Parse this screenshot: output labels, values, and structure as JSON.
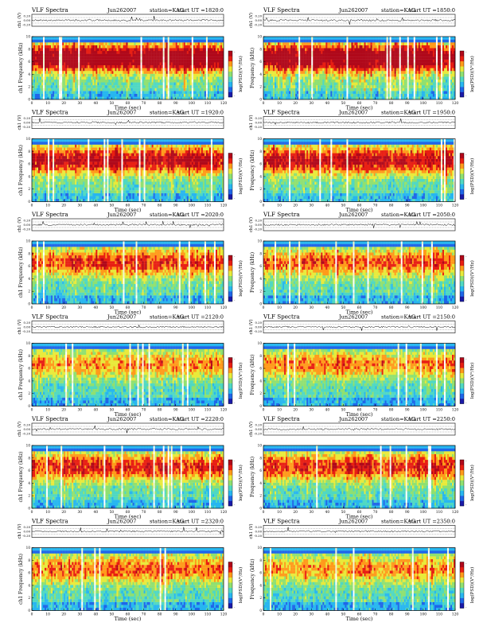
{
  "chart_data": [
    {
      "type": "heatmap",
      "product": "VLF Spectra",
      "date": "Jun262007",
      "station": "station=KAG",
      "start_ut": "start UT =1820:0",
      "waveform_ylabel": "ch1 (V)",
      "waveform_ticks": [
        "0.20",
        "0.00",
        "-0.20"
      ],
      "ylabel": "ch1 Frequency (kHz)",
      "xlabel": "Time (sec)",
      "xlim": [
        0,
        120
      ],
      "ylim": [
        0,
        10
      ],
      "x_ticks": [
        "0",
        "10",
        "20",
        "30",
        "40",
        "50",
        "60",
        "70",
        "80",
        "90",
        "100",
        "110",
        "120"
      ],
      "y_ticks": [
        "0",
        "2",
        "4",
        "6",
        "8",
        "10"
      ],
      "colorbar_label": "log(PSD)(V²/Hz)",
      "colorbar_ticks": [
        "-",
        "-"
      ],
      "intensity": 0.85,
      "seed": 11
    },
    {
      "type": "heatmap",
      "product": "VLF Spectra",
      "date": "Jun262007",
      "station": "station=KAG",
      "start_ut": "start UT =1850:0",
      "waveform_ylabel": "ch1 (V)",
      "waveform_ticks": [
        "0.20",
        "0.00",
        "-0.20"
      ],
      "ylabel": "Frequency (kHz)",
      "xlabel": "Time (sec)",
      "xlim": [
        0,
        120
      ],
      "ylim": [
        0,
        10
      ],
      "x_ticks": [
        "0",
        "10",
        "20",
        "30",
        "40",
        "50",
        "60",
        "70",
        "80",
        "90",
        "100",
        "110",
        "120"
      ],
      "y_ticks": [
        "0",
        "2",
        "4",
        "6",
        "8",
        "10"
      ],
      "colorbar_label": "log(PSD)(V²/Hz)",
      "colorbar_ticks": [
        "-",
        "-"
      ],
      "intensity": 0.8,
      "seed": 23
    },
    {
      "type": "heatmap",
      "product": "VLF Spectra",
      "date": "Jun262007",
      "station": "station=KAG",
      "start_ut": "start UT =1920:0",
      "waveform_ylabel": "ch1 (V)",
      "waveform_ticks": [
        "0.20",
        "0.00",
        "-0.20"
      ],
      "ylabel": "ch1 Frequency (kHz)",
      "xlabel": "Time (sec)",
      "xlim": [
        0,
        120
      ],
      "ylim": [
        0,
        10
      ],
      "x_ticks": [
        "0",
        "10",
        "20",
        "30",
        "40",
        "50",
        "60",
        "70",
        "80",
        "90",
        "100",
        "110",
        "120"
      ],
      "y_ticks": [
        "0",
        "2",
        "4",
        "6",
        "8",
        "10"
      ],
      "colorbar_label": "log(PSD)(V²/Hz)",
      "colorbar_ticks": [
        "-",
        "-"
      ],
      "intensity": 0.62,
      "seed": 37
    },
    {
      "type": "heatmap",
      "product": "VLF Spectra",
      "date": "Jun262007",
      "station": "station=KAG",
      "start_ut": "start UT =1950:0",
      "waveform_ylabel": "ch1 (V)",
      "waveform_ticks": [
        "0.20",
        "0.00",
        "-0.20"
      ],
      "ylabel": "Frequency (kHz)",
      "xlabel": "Time (sec)",
      "xlim": [
        0,
        120
      ],
      "ylim": [
        0,
        10
      ],
      "x_ticks": [
        "0",
        "10",
        "20",
        "30",
        "40",
        "50",
        "60",
        "70",
        "80",
        "90",
        "100",
        "110",
        "120"
      ],
      "y_ticks": [
        "0",
        "2",
        "4",
        "6",
        "8",
        "10"
      ],
      "colorbar_label": "log(PSD)(V²/Hz)",
      "colorbar_ticks": [
        "-",
        "-"
      ],
      "intensity": 0.6,
      "seed": 41
    },
    {
      "type": "heatmap",
      "product": "VLF Spectra",
      "date": "Jun262007",
      "station": "station=KAG",
      "start_ut": "start UT =2020:0",
      "waveform_ylabel": "ch1 (V)",
      "waveform_ticks": [
        "0.20",
        "0.00",
        "-0.20"
      ],
      "ylabel": "ch1 Frequency (kHz)",
      "xlabel": "Time (sec)",
      "xlim": [
        0,
        120
      ],
      "ylim": [
        0,
        10
      ],
      "x_ticks": [
        "0",
        "10",
        "20",
        "30",
        "40",
        "50",
        "60",
        "70",
        "80",
        "90",
        "100",
        "110",
        "120"
      ],
      "y_ticks": [
        "0",
        "2",
        "4",
        "6",
        "8",
        "10"
      ],
      "colorbar_label": "log(PSD)(V²/Hz)",
      "colorbar_ticks": [
        "-",
        "-"
      ],
      "intensity": 0.45,
      "seed": 53
    },
    {
      "type": "heatmap",
      "product": "VLF Spectra",
      "date": "Jun262007",
      "station": "station=KAG",
      "start_ut": "start UT =2050:0",
      "waveform_ylabel": "ch1 (V)",
      "waveform_ticks": [
        "0.20",
        "0.00",
        "-0.20"
      ],
      "ylabel": "Frequency (kHz)",
      "xlabel": "Time (sec)",
      "xlim": [
        0,
        120
      ],
      "ylim": [
        0,
        10
      ],
      "x_ticks": [
        "0",
        "10",
        "20",
        "30",
        "40",
        "50",
        "60",
        "70",
        "80",
        "90",
        "100",
        "110",
        "120"
      ],
      "y_ticks": [
        "0",
        "2",
        "4",
        "6",
        "8",
        "10"
      ],
      "colorbar_label": "log(PSD)(V²/Hz)",
      "colorbar_ticks": [
        "-",
        "-"
      ],
      "intensity": 0.42,
      "seed": 67
    },
    {
      "type": "heatmap",
      "product": "VLF Spectra",
      "date": "Jun262007",
      "station": "station=KAG",
      "start_ut": "start UT =2120:0",
      "waveform_ylabel": "ch1 (V)",
      "waveform_ticks": [
        "0.20",
        "0.00",
        "-0.20"
      ],
      "ylabel": "ch1 Frequency (kHz)",
      "xlabel": "Time (sec)",
      "xlim": [
        0,
        120
      ],
      "ylim": [
        0,
        10
      ],
      "x_ticks": [
        "0",
        "10",
        "20",
        "30",
        "40",
        "50",
        "60",
        "70",
        "80",
        "90",
        "100",
        "110",
        "120"
      ],
      "y_ticks": [
        "0",
        "2",
        "4",
        "6",
        "8",
        "10"
      ],
      "colorbar_label": "log(PSD)(V²/Hz)",
      "colorbar_ticks": [
        "-",
        "-"
      ],
      "intensity": 0.3,
      "seed": 71
    },
    {
      "type": "heatmap",
      "product": "VLF Spectra",
      "date": "Jun262007",
      "station": "station=KAG",
      "start_ut": "start UT =2150:0",
      "waveform_ylabel": "ch1 (V)",
      "waveform_ticks": [
        "0.20",
        "0.00",
        "-0.20"
      ],
      "ylabel": "Frequency (kHz)",
      "xlabel": "Time (sec)",
      "xlim": [
        0,
        120
      ],
      "ylim": [
        0,
        10
      ],
      "x_ticks": [
        "0",
        "10",
        "20",
        "30",
        "40",
        "50",
        "60",
        "70",
        "80",
        "90",
        "100",
        "110",
        "120"
      ],
      "y_ticks": [
        "0",
        "2",
        "4",
        "6",
        "8",
        "10"
      ],
      "colorbar_label": "log(PSD)(V²/Hz)",
      "colorbar_ticks": [
        "-",
        "-"
      ],
      "intensity": 0.35,
      "seed": 83
    },
    {
      "type": "heatmap",
      "product": "VLF Spectra",
      "date": "Jun262007",
      "station": "station=KAG",
      "start_ut": "start UT =2220:0",
      "waveform_ylabel": "ch1 (V)",
      "waveform_ticks": [
        "0.20",
        "0.00",
        "-0.20"
      ],
      "ylabel": "ch1 Frequency (kHz)",
      "xlabel": "Time (sec)",
      "xlim": [
        0,
        120
      ],
      "ylim": [
        0,
        10
      ],
      "x_ticks": [
        "0",
        "10",
        "20",
        "30",
        "40",
        "50",
        "60",
        "70",
        "80",
        "90",
        "100",
        "110",
        "120"
      ],
      "y_ticks": [
        "0",
        "2",
        "4",
        "6",
        "8",
        "10"
      ],
      "colorbar_label": "log(PSD)(V²/Hz)",
      "colorbar_ticks": [
        "-",
        "-"
      ],
      "intensity": 0.5,
      "seed": 97
    },
    {
      "type": "heatmap",
      "product": "VLF Spectra",
      "date": "Jun262007",
      "station": "station=KAG",
      "start_ut": "start UT =2250:0",
      "waveform_ylabel": "ch1 (V)",
      "waveform_ticks": [
        "0.20",
        "0.00",
        "-0.20"
      ],
      "ylabel": "Frequency (kHz)",
      "xlabel": "Time (sec)",
      "xlim": [
        0,
        120
      ],
      "ylim": [
        0,
        10
      ],
      "x_ticks": [
        "0",
        "10",
        "20",
        "30",
        "40",
        "50",
        "60",
        "70",
        "80",
        "90",
        "100",
        "110",
        "120"
      ],
      "y_ticks": [
        "0",
        "2",
        "4",
        "6",
        "8",
        "10"
      ],
      "colorbar_label": "log(PSD)(V²/Hz)",
      "colorbar_ticks": [
        "-",
        "-"
      ],
      "intensity": 0.5,
      "seed": 101
    },
    {
      "type": "heatmap",
      "product": "VLF Spectra",
      "date": "Jun262007",
      "station": "station=KAG",
      "start_ut": "start UT =2320:0",
      "waveform_ylabel": "ch1 (V)",
      "waveform_ticks": [
        "0.20",
        "0.00",
        "-0.20"
      ],
      "ylabel": "ch1 Frequency (kHz)",
      "xlabel": "Time (sec)",
      "xlim": [
        0,
        120
      ],
      "ylim": [
        0,
        10
      ],
      "x_ticks": [
        "0",
        "10",
        "20",
        "30",
        "40",
        "50",
        "60",
        "70",
        "80",
        "90",
        "100",
        "110",
        "120"
      ],
      "y_ticks": [
        "0",
        "2",
        "4",
        "6",
        "8",
        "10"
      ],
      "colorbar_label": "log(PSD)(V²/Hz)",
      "colorbar_ticks": [
        "-",
        "-"
      ],
      "intensity": 0.4,
      "seed": 113
    },
    {
      "type": "heatmap",
      "product": "VLF Spectra",
      "date": "Jun262007",
      "station": "station=KAG",
      "start_ut": "start UT =2350:0",
      "waveform_ylabel": "ch1 (V)",
      "waveform_ticks": [
        "0.20",
        "0.00",
        "-0.20"
      ],
      "ylabel": "Frequency (kHz)",
      "xlabel": "Time (sec)",
      "xlim": [
        0,
        120
      ],
      "ylim": [
        0,
        10
      ],
      "x_ticks": [
        "0",
        "10",
        "20",
        "30",
        "40",
        "50",
        "60",
        "70",
        "80",
        "90",
        "100",
        "110",
        "120"
      ],
      "y_ticks": [
        "0",
        "2",
        "4",
        "6",
        "8",
        "10"
      ],
      "colorbar_label": "log(PSD)(V²/Hz)",
      "colorbar_ticks": [
        "-",
        "-"
      ],
      "intensity": 0.32,
      "seed": 127
    }
  ],
  "colormap": [
    "#1a1aa8",
    "#1f66e8",
    "#27b6f0",
    "#4fd8c2",
    "#8fe070",
    "#e8ea3a",
    "#ff9a1a",
    "#e81e12",
    "#b0081a"
  ]
}
